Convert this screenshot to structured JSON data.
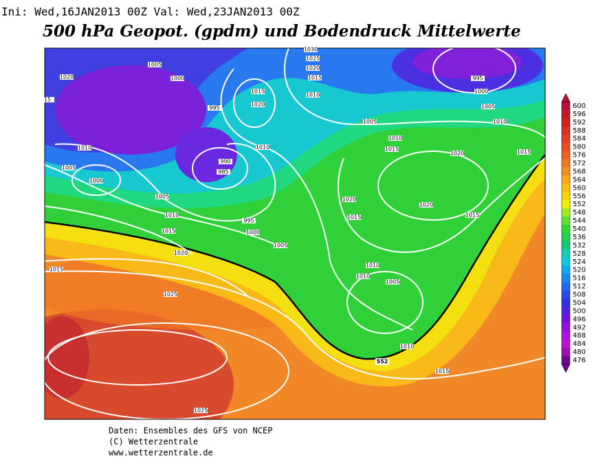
{
  "header": {
    "run_info": "Ini: Wed,16JAN2013 00Z Val: Wed,23JAN2013 00Z",
    "title": "500 hPa Geopot. (gpdm) und Bodendruck Mittelwerte"
  },
  "colorbar": {
    "levels": [
      600,
      596,
      592,
      588,
      584,
      580,
      576,
      572,
      568,
      564,
      560,
      556,
      552,
      548,
      544,
      540,
      536,
      532,
      528,
      524,
      520,
      516,
      512,
      508,
      504,
      500,
      496,
      492,
      488,
      484,
      480,
      476
    ],
    "colors": [
      "#b0103a",
      "#c01828",
      "#d02020",
      "#d83028",
      "#e04028",
      "#e85028",
      "#f06020",
      "#f07820",
      "#f09020",
      "#f8a818",
      "#f8c010",
      "#f8d800",
      "#f0f000",
      "#a0e820",
      "#60e030",
      "#30d830",
      "#20d050",
      "#10c878",
      "#10d0b0",
      "#10c8e0",
      "#10a8f0",
      "#1888f0",
      "#2068f0",
      "#2848e8",
      "#3030e0",
      "#5020e0",
      "#7010e0",
      "#9010e0",
      "#b010e0",
      "#c010d0",
      "#a010b0",
      "#700890"
    ]
  },
  "map": {
    "highlighted_contour": "552",
    "isobar_labels": [
      "1030",
      "1025",
      "1020",
      "1015",
      "1005",
      "1000",
      "1020",
      "15",
      "995",
      "1015",
      "1020",
      "1010",
      "1005",
      "995",
      "1000",
      "1005",
      "1010",
      "1010",
      "1015",
      "1010",
      "1010",
      "990",
      "985",
      "1005",
      "1000",
      "1020",
      "1015",
      "1005",
      "1020",
      "1020",
      "1010",
      "995",
      "1015",
      "1015",
      "1015",
      "1000",
      "1005",
      "1020",
      "1015",
      "1010",
      "1010",
      "1005",
      "1025",
      "1010",
      "1015",
      "1025"
    ]
  },
  "footer": {
    "line1": "Daten: Ensembles des GFS von NCEP",
    "line2": "(C) Wetterzentrale",
    "line3": "www.wetterzentrale.de"
  }
}
